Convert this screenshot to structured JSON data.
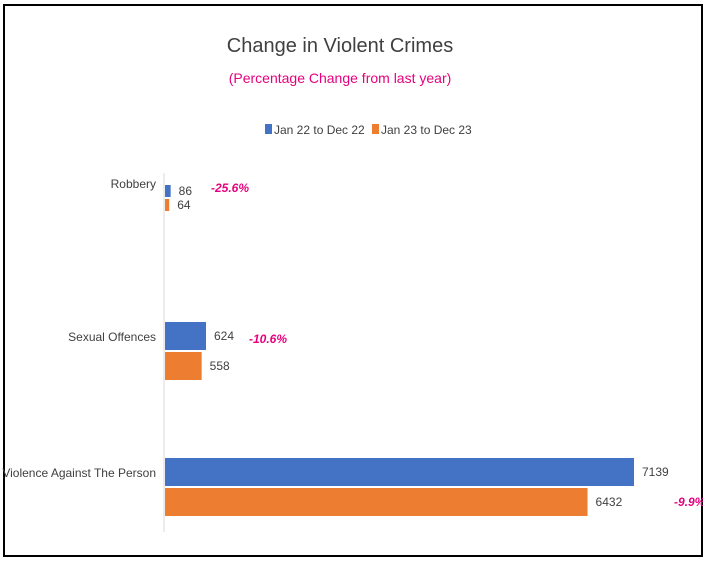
{
  "chart_data": {
    "type": "bar",
    "orientation": "horizontal",
    "title": "Change in Violent Crimes",
    "subtitle": "(Percentage Change from last year)",
    "categories": [
      "Robbery",
      "Sexual Offences",
      "Violence Against The Person"
    ],
    "series": [
      {
        "name": "Jan 22 to Dec 22",
        "values": [
          86,
          624,
          7139
        ]
      },
      {
        "name": "Jan 23 to Dec 23",
        "values": [
          64,
          558,
          6432
        ]
      }
    ],
    "annotations": [
      "-25.6%",
      "-10.6%",
      "-9.9%"
    ],
    "xlim": [
      0,
      7139
    ],
    "grid": false,
    "legend_position": "top"
  },
  "colors": {
    "series_1": "#4472C4",
    "series_2": "#ED7D31",
    "subtitle": "#E6007E",
    "annotation": "#E6007E"
  }
}
